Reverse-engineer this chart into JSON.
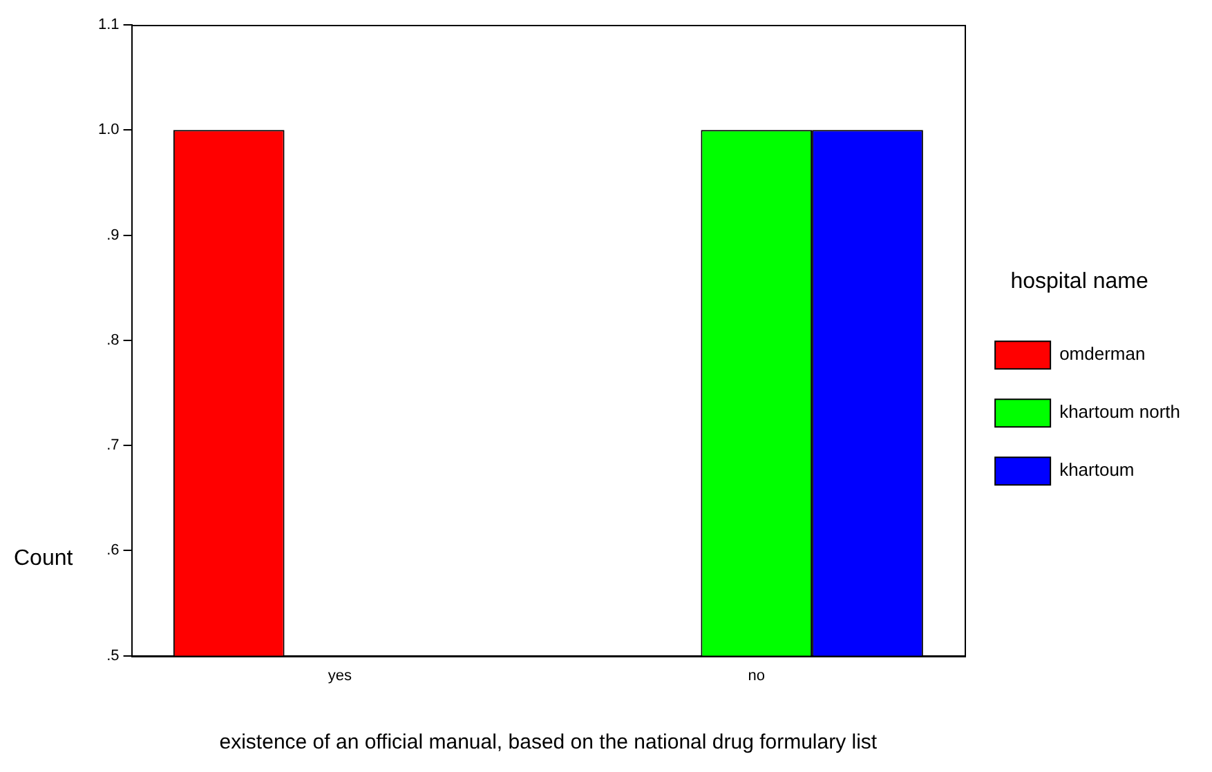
{
  "chart_data": {
    "type": "bar",
    "xlabel": "existence of an official manual, based on the national drug formulary list",
    "ylabel": "Count",
    "legend_title": "hospital name",
    "categories": [
      "yes",
      "no"
    ],
    "series": [
      {
        "name": "omderman",
        "color": "#ff0000",
        "values": [
          1.0,
          null
        ]
      },
      {
        "name": "khartoum north",
        "color": "#00ff00",
        "values": [
          null,
          1.0
        ]
      },
      {
        "name": "khartoum",
        "color": "#0000ff",
        "values": [
          null,
          1.0
        ]
      }
    ],
    "ylim": [
      0.5,
      1.1
    ],
    "yticks": [
      {
        "value": 0.5,
        "label": ".5"
      },
      {
        "value": 0.6,
        "label": ".6"
      },
      {
        "value": 0.7,
        "label": ".7"
      },
      {
        "value": 0.8,
        "label": ".8"
      },
      {
        "value": 0.9,
        "label": ".9"
      },
      {
        "value": 1.0,
        "label": "1.0"
      },
      1.1
    ],
    "grid": false,
    "legend": "right"
  }
}
